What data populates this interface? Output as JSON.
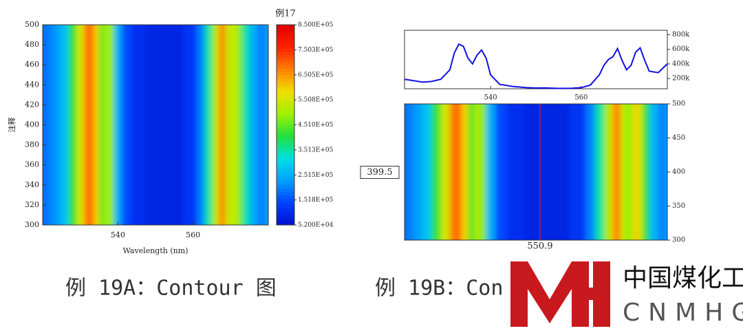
{
  "chart_data": [
    {
      "type": "contour",
      "title": "例17",
      "x_label": "Wavelength (nm)",
      "y_label": "注释",
      "xlim": [
        520,
        580
      ],
      "xticks": [
        540,
        560
      ],
      "ylim": [
        300,
        500
      ],
      "yticks": [
        300,
        320,
        340,
        360,
        380,
        400,
        420,
        440,
        460,
        480,
        500
      ],
      "x": [
        520,
        522,
        524,
        526,
        528,
        530,
        532,
        533,
        534,
        536,
        537,
        538,
        540,
        542,
        545,
        550,
        555,
        560,
        562,
        564,
        566,
        567,
        568,
        569,
        570,
        571,
        572,
        574,
        576,
        578,
        580
      ],
      "z": [
        180000,
        200000,
        230000,
        280000,
        420000,
        550000,
        680000,
        700000,
        600000,
        450000,
        520000,
        480000,
        250000,
        150000,
        110000,
        90000,
        90000,
        120000,
        200000,
        350000,
        500000,
        620000,
        700000,
        560000,
        500000,
        560000,
        480000,
        350000,
        250000,
        200000,
        230000
      ],
      "zlim": [
        52000,
        850000
      ],
      "zticks": [
        {
          "value": 52000,
          "label": "5.200E+04"
        },
        {
          "value": 151800,
          "label": "1.518E+05"
        },
        {
          "value": 251500,
          "label": "2.515E+05"
        },
        {
          "value": 351300,
          "label": "3.513E+05"
        },
        {
          "value": 451000,
          "label": "4.510E+05"
        },
        {
          "value": 550800,
          "label": "5.508E+05"
        },
        {
          "value": 650500,
          "label": "6.505E+05"
        },
        {
          "value": 750300,
          "label": "7.503E+05"
        },
        {
          "value": 850000,
          "label": "8.500E+05"
        }
      ],
      "colormap": [
        "#0010d0",
        "#0040ff",
        "#00a0ff",
        "#00e0e0",
        "#20e040",
        "#a0f000",
        "#f0e000",
        "#ff8000",
        "#ff2000",
        "#e00000"
      ]
    },
    {
      "type": "line",
      "color": "#1010e0",
      "xlim": [
        521,
        579
      ],
      "xticks": [
        540,
        560
      ],
      "ylim": [
        60000,
        860000
      ],
      "yticks": [
        {
          "value": 200000,
          "label": "200k"
        },
        {
          "value": 400000,
          "label": "400k"
        },
        {
          "value": 600000,
          "label": "600k"
        },
        {
          "value": 800000,
          "label": "800k"
        }
      ],
      "x": [
        521,
        523,
        525,
        527,
        529,
        531,
        532,
        533,
        534,
        535,
        536,
        537,
        538,
        539,
        540,
        542,
        545,
        548,
        550,
        552,
        555,
        558,
        560,
        562,
        564,
        565,
        566,
        567,
        568,
        569,
        570,
        571,
        572,
        573,
        574,
        575,
        577,
        579
      ],
      "values": [
        190000,
        170000,
        150000,
        160000,
        190000,
        320000,
        550000,
        670000,
        640000,
        480000,
        400000,
        520000,
        590000,
        480000,
        250000,
        120000,
        90000,
        75000,
        70000,
        72000,
        65000,
        68000,
        75000,
        110000,
        250000,
        380000,
        460000,
        500000,
        610000,
        450000,
        320000,
        380000,
        560000,
        620000,
        450000,
        300000,
        280000,
        400000
      ]
    },
    {
      "type": "contour",
      "xlim": [
        521,
        579
      ],
      "ylim": [
        300,
        500
      ],
      "yticks": [
        300,
        350,
        400,
        450,
        500
      ],
      "x": [
        521,
        522,
        524,
        526,
        528,
        530,
        532,
        533,
        534,
        536,
        537,
        538,
        540,
        542,
        545,
        550,
        555,
        560,
        562,
        564,
        566,
        567,
        568,
        569,
        570,
        571,
        572,
        573,
        574,
        576,
        578,
        579
      ],
      "z": [
        180000,
        200000,
        230000,
        280000,
        420000,
        550000,
        680000,
        700000,
        600000,
        450000,
        520000,
        480000,
        250000,
        150000,
        110000,
        90000,
        90000,
        120000,
        200000,
        350000,
        500000,
        620000,
        700000,
        560000,
        480000,
        520000,
        600000,
        560000,
        420000,
        260000,
        200000,
        230000
      ],
      "cursor_x": 550.9,
      "cursor_y": 399.5
    }
  ],
  "captions": [
    "例 19A：Contour 图",
    "例 19B：Con"
  ],
  "logo": {
    "name": "中国煤化工",
    "code": "CNMHG"
  }
}
